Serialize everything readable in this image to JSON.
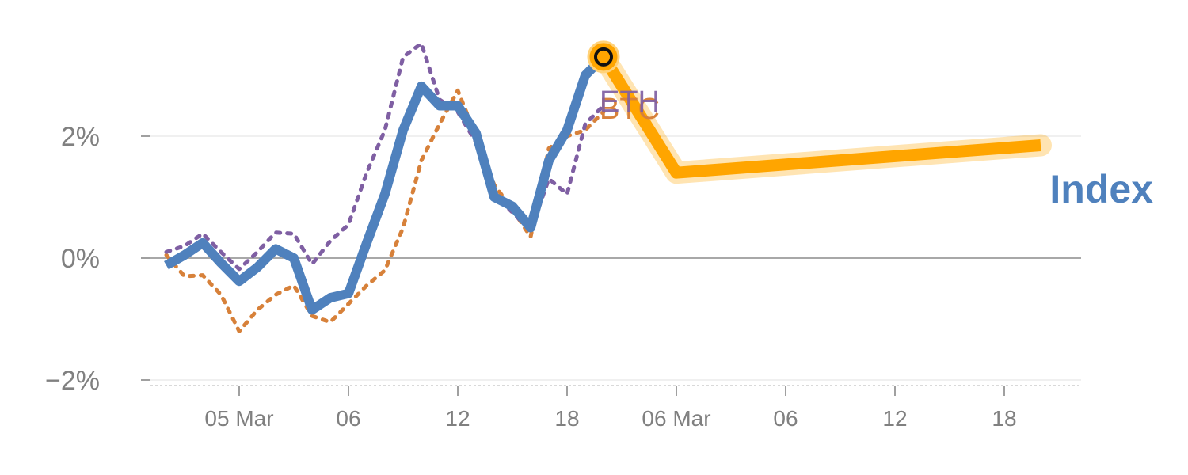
{
  "chart_data": {
    "type": "line",
    "title": "",
    "xlabel": "",
    "ylabel": "",
    "ylim": [
      -2.1,
      3.6
    ],
    "y_ticks": [
      {
        "value": -2,
        "label": "−2%"
      },
      {
        "value": 0,
        "label": "0%"
      },
      {
        "value": 2,
        "label": "2%"
      }
    ],
    "x_ticks": [
      {
        "index": 4,
        "label": "05 Mar"
      },
      {
        "index": 10,
        "label": "06"
      },
      {
        "index": 16,
        "label": "12"
      },
      {
        "index": 22,
        "label": "18"
      },
      {
        "index": 28,
        "label": "06 Mar"
      },
      {
        "index": 34,
        "label": "06"
      },
      {
        "index": 40,
        "label": "12"
      },
      {
        "index": 46,
        "label": "18"
      }
    ],
    "grid": true,
    "zero_line": true,
    "series": [
      {
        "name": "Index",
        "color": "#4f81bd",
        "style": "solid",
        "x": [
          0,
          1,
          2,
          3,
          4,
          5,
          6,
          7,
          8,
          9,
          10,
          11,
          12,
          13,
          14,
          15,
          16,
          17,
          18,
          19,
          20,
          21,
          22,
          23,
          24
        ],
        "values": [
          -0.12,
          0.05,
          0.25,
          -0.08,
          -0.38,
          -0.15,
          0.15,
          0.0,
          -0.85,
          -0.65,
          -0.58,
          0.25,
          1.05,
          2.1,
          2.82,
          2.5,
          2.5,
          2.05,
          1.0,
          0.85,
          0.5,
          1.6,
          2.1,
          3.0,
          3.3
        ]
      },
      {
        "name": "BTC",
        "color": "#d7813a",
        "style": "dotted",
        "x": [
          0,
          1,
          2,
          3,
          4,
          5,
          6,
          7,
          8,
          9,
          10,
          11,
          12,
          13,
          14,
          15,
          16,
          17,
          18,
          19,
          20,
          21,
          22,
          23,
          24
        ],
        "values": [
          0.05,
          -0.3,
          -0.28,
          -0.6,
          -1.2,
          -0.85,
          -0.6,
          -0.45,
          -0.95,
          -1.05,
          -0.75,
          -0.45,
          -0.2,
          0.5,
          1.6,
          2.2,
          2.75,
          2.0,
          1.2,
          0.8,
          0.35,
          1.8,
          2.0,
          2.1,
          2.4
        ]
      },
      {
        "name": "ETH",
        "color": "#7f5fa3",
        "style": "dotted",
        "x": [
          0,
          1,
          2,
          3,
          4,
          5,
          6,
          7,
          8,
          9,
          10,
          11,
          12,
          13,
          14,
          15,
          16,
          17,
          18,
          19,
          20,
          21,
          22,
          23,
          24
        ],
        "values": [
          0.1,
          0.2,
          0.4,
          0.1,
          -0.18,
          0.1,
          0.42,
          0.4,
          -0.1,
          0.28,
          0.55,
          1.4,
          2.1,
          3.3,
          3.52,
          2.6,
          2.4,
          1.9,
          1.05,
          0.75,
          0.45,
          1.3,
          1.05,
          2.2,
          2.5
        ]
      },
      {
        "name": "",
        "color": "#ffa500",
        "style": "highlight",
        "x": [
          24,
          28,
          48
        ],
        "values": [
          3.3,
          1.4,
          1.85
        ]
      }
    ],
    "end_labels": [
      "BTC",
      "ETH"
    ],
    "callout_label": "Index",
    "marker": {
      "x": 24,
      "y": 3.3
    }
  }
}
